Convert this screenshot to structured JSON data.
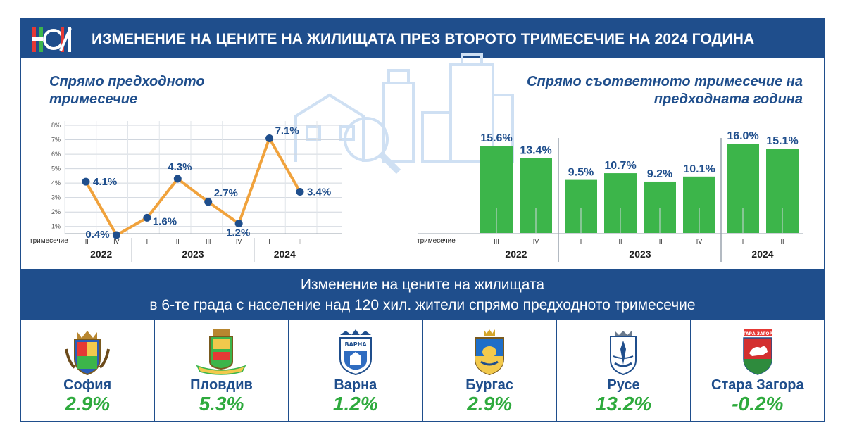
{
  "header": {
    "title": "ИЗМЕНЕНИЕ НА ЦЕНИТЕ НА ЖИЛИЩАТА ПРЕЗ ВТОРОТО ТРИМЕСЕЧИЕ НА 2024 ГОДИНА",
    "logo": "nsi-logo"
  },
  "left_subtitle": "Спрямо предходното тримесечие",
  "right_subtitle": "Спрямо съответното тримесечие на предходната година",
  "quarter_row_label": "тримесечие",
  "colors": {
    "navy": "#1f4e8c",
    "green": "#3cb54a",
    "line": "#f0a23c",
    "value_green": "#2eaa3d"
  },
  "chart_data": [
    {
      "type": "line",
      "title": "Спрямо предходното тримесечие",
      "categories": [
        "III",
        "IV",
        "I",
        "II",
        "III",
        "IV",
        "I",
        "II"
      ],
      "years": [
        {
          "label": "2022",
          "quarters": 2
        },
        {
          "label": "2023",
          "quarters": 4
        },
        {
          "label": "2024",
          "quarters": 2
        }
      ],
      "series": [
        {
          "values": [
            4.1,
            0.4,
            1.6,
            4.3,
            2.7,
            1.2,
            7.1,
            3.4
          ],
          "labels": [
            "4.1%",
            "0.4%",
            "1.6%",
            "4.3%",
            "2.7%",
            "1.2%",
            "7.1%",
            "3.4%"
          ]
        }
      ],
      "y_ticks": [
        "1%",
        "2%",
        "3%",
        "4%",
        "5%",
        "6%",
        "7%",
        "8%"
      ],
      "ylim": [
        0.5,
        8
      ],
      "grid": true
    },
    {
      "type": "bar",
      "title": "Спрямо съответното тримесечие на предходната година",
      "categories": [
        "III",
        "IV",
        "I",
        "II",
        "III",
        "IV",
        "I",
        "II"
      ],
      "years": [
        {
          "label": "2022",
          "quarters": 2
        },
        {
          "label": "2023",
          "quarters": 4
        },
        {
          "label": "2024",
          "quarters": 2
        }
      ],
      "series": [
        {
          "values": [
            15.6,
            13.4,
            9.5,
            10.7,
            9.2,
            10.1,
            16.0,
            15.1
          ],
          "labels": [
            "15.6%",
            "13.4%",
            "9.5%",
            "10.7%",
            "9.2%",
            "10.1%",
            "16.0%",
            "15.1%"
          ]
        }
      ],
      "ylim": [
        0,
        16
      ]
    }
  ],
  "banner": {
    "line1": "Изменение на цените на жилищата",
    "line2": "в 6-те града с население над 120 хил. жители спрямо предходното тримесечие"
  },
  "cities": [
    {
      "name": "София",
      "value": "2.9%",
      "crest": "sofia-crest"
    },
    {
      "name": "Пловдив",
      "value": "5.3%",
      "crest": "plovdiv-crest"
    },
    {
      "name": "Варна",
      "value": "1.2%",
      "crest": "varna-crest",
      "crest_text": "ВАРНА"
    },
    {
      "name": "Бургас",
      "value": "2.9%",
      "crest": "burgas-crest"
    },
    {
      "name": "Русе",
      "value": "13.2%",
      "crest": "ruse-crest"
    },
    {
      "name": "Стара Загора",
      "value": "-0.2%",
      "crest": "stara-zagora-crest",
      "crest_text": "СТАРА ЗАГОРА"
    }
  ]
}
